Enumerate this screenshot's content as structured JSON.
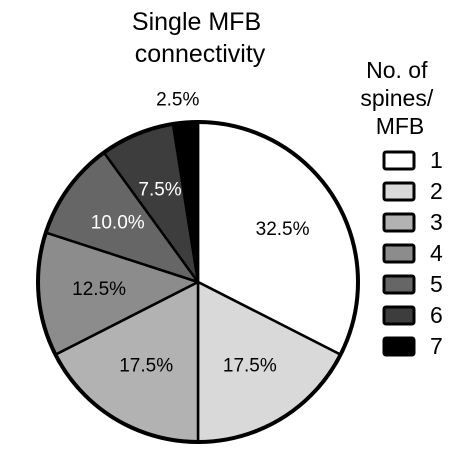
{
  "chart_data": {
    "type": "pie",
    "title": "Single MFB connectivity",
    "title_lines": [
      "Single MFB",
      "connectivity"
    ],
    "legend": {
      "title": "No. of spines/ MFB",
      "title_lines": [
        "No. of",
        "spines/",
        "MFB"
      ],
      "entries": [
        "1",
        "2",
        "3",
        "4",
        "5",
        "6",
        "7"
      ]
    },
    "slices": [
      {
        "category": "1",
        "value": 32.5,
        "label": "32.5%",
        "color": "#ffffff",
        "text_color": "#000000"
      },
      {
        "category": "2",
        "value": 17.5,
        "label": "17.5%",
        "color": "#d9d9d9",
        "text_color": "#000000"
      },
      {
        "category": "3",
        "value": 17.5,
        "label": "17.5%",
        "color": "#b2b2b2",
        "text_color": "#000000"
      },
      {
        "category": "4",
        "value": 12.5,
        "label": "12.5%",
        "color": "#8c8c8c",
        "text_color": "#000000"
      },
      {
        "category": "5",
        "value": 10.0,
        "label": "10.0%",
        "color": "#666666",
        "text_color": "#ffffff"
      },
      {
        "category": "6",
        "value": 7.5,
        "label": "7.5%",
        "color": "#3d3d3d",
        "text_color": "#ffffff"
      },
      {
        "category": "7",
        "value": 2.5,
        "label": "2.5%",
        "color": "#000000",
        "text_color": "#000000"
      }
    ]
  }
}
